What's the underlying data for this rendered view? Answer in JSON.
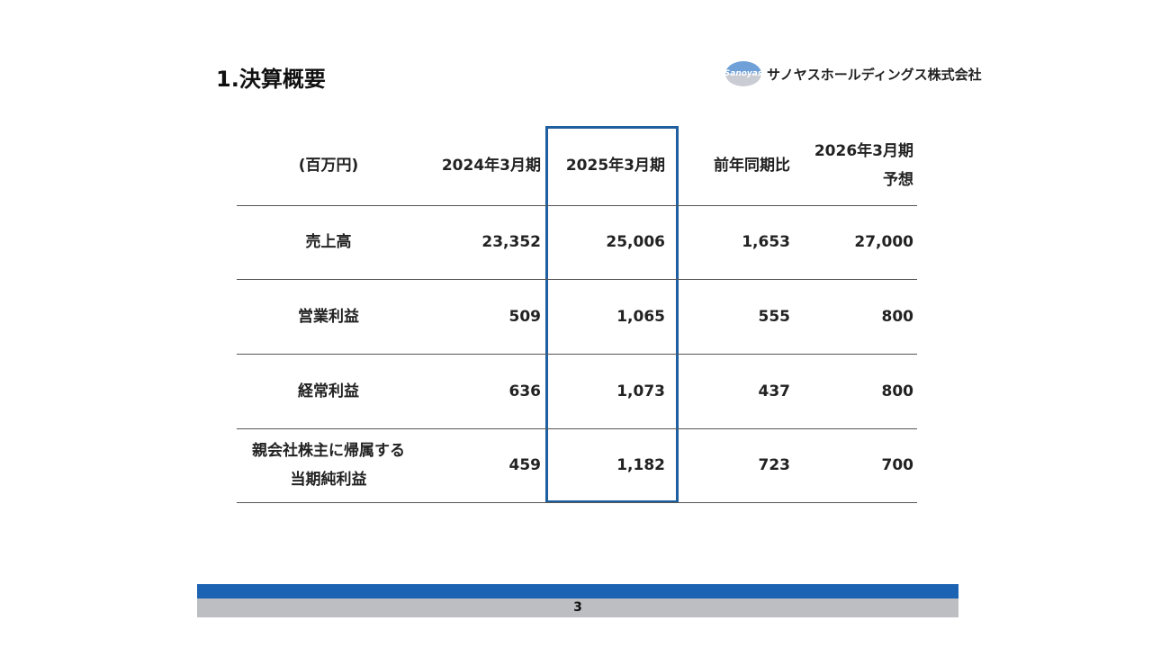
{
  "header": {
    "title": "1.決算概要",
    "logo_mark": "Sanoyas",
    "logo_text": "サノヤスホールディングス株式会社"
  },
  "table": {
    "columns": [
      [
        "(百万円)"
      ],
      [
        "2024年3月期"
      ],
      [
        "2025年3月期"
      ],
      [
        "前年同期比"
      ],
      [
        "2026年3月期",
        "予想"
      ]
    ],
    "rows": [
      [
        [
          "売上高"
        ],
        "23,352",
        "25,006",
        "1,653",
        "27,000"
      ],
      [
        [
          "営業利益"
        ],
        "509",
        "1,065",
        "555",
        "800"
      ],
      [
        [
          "経常利益"
        ],
        "636",
        "1,073",
        "437",
        "800"
      ],
      [
        [
          "親会社株主に帰属する",
          "当期純利益"
        ],
        "459",
        "1,182",
        "723",
        "700"
      ]
    ]
  },
  "footer": {
    "page": "3"
  }
}
